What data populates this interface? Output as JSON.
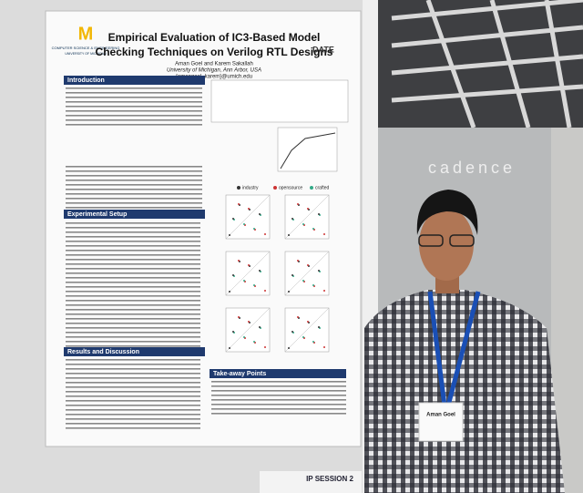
{
  "poster": {
    "title_line1": "Empirical Evaluation of IC3-Based Model",
    "title_line2": "Checking Techniques on Verilog RTL Designs",
    "authors": "Aman Goel and Karem Sakallah",
    "affiliation": "University of Michigan, Ann Arbor, USA",
    "email": "{amangoel, karem}@umich.edu",
    "logo_text": "COMPUTER SCIENCE & ENGINEERING",
    "university": "UNIVERSITY OF MICHIGAN",
    "conference": "DATE",
    "sections": [
      "Introduction",
      "Experimental Setup",
      "Results and Discussion",
      "Take-away Points"
    ],
    "legend": [
      "industry",
      "opensource",
      "crafted"
    ]
  },
  "sign": {
    "session": "IP SESSION 2"
  },
  "banner": "cadence",
  "badge": "Aman Goel"
}
